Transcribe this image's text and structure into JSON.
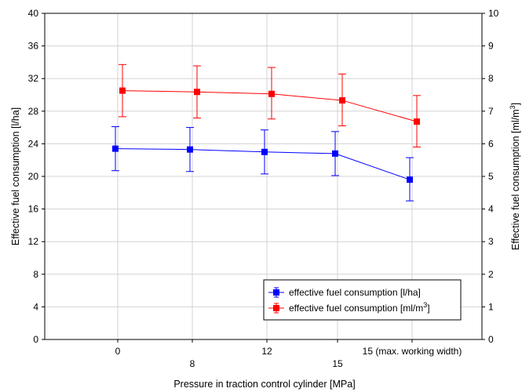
{
  "chart_data": {
    "type": "line",
    "xlabel": "Pressure in traction control cylinder [MPa]",
    "ylabel_left": "Effective fuel consumption [l/ha]",
    "ylabel_right_prefix": "Effective fuel consumption [ml/m",
    "ylabel_right_sup": "3",
    "ylabel_right_suffix": "]",
    "categories": [
      "0",
      "8",
      "12",
      "15",
      "15 (max. working width)"
    ],
    "ylim_left": [
      0,
      40
    ],
    "yticks_left": [
      0,
      4,
      8,
      12,
      16,
      20,
      24,
      28,
      32,
      36,
      40
    ],
    "ylim_right": [
      0,
      10
    ],
    "yticks_right": [
      0,
      1,
      2,
      3,
      4,
      5,
      6,
      7,
      8,
      9,
      10
    ],
    "grid": true,
    "legend_position": "bottom-right",
    "series": [
      {
        "name": "effective fuel consumption [l/ha]",
        "axis": "left",
        "color": "#0000ff",
        "values": [
          23.4,
          23.3,
          23.0,
          22.8,
          19.6
        ],
        "error_low": [
          20.7,
          20.6,
          20.3,
          20.1,
          17.0
        ],
        "error_high": [
          26.1,
          26.0,
          25.7,
          25.5,
          22.3
        ]
      },
      {
        "name_prefix": "effective fuel consumption [ml/m",
        "name_sup": "3",
        "name_suffix": "]",
        "axis": "right",
        "color": "#ff0000",
        "values": [
          7.63,
          7.59,
          7.53,
          7.33,
          6.68
        ],
        "error_low": [
          6.83,
          6.79,
          6.76,
          6.55,
          5.9
        ],
        "error_high": [
          8.43,
          8.39,
          8.34,
          8.14,
          7.48
        ]
      }
    ]
  }
}
